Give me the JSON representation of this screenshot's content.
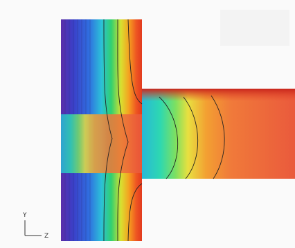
{
  "axis_triad": {
    "vertical_label": "Y",
    "horizontal_label": "Z"
  }
}
